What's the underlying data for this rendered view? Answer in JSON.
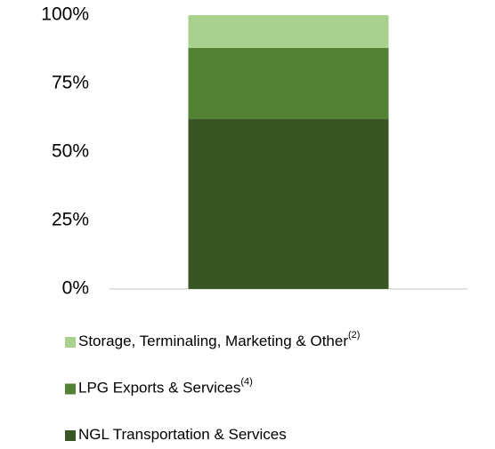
{
  "chart_data": {
    "type": "stacked_bar",
    "categories": [
      null
    ],
    "series": [
      {
        "name": "NGL Transportation & Services",
        "color": "#375623",
        "values": [
          62
        ]
      },
      {
        "name": "LPG Exports & Services",
        "note": "(4)",
        "color": "#548235",
        "values": [
          26
        ]
      },
      {
        "name": "Storage, Terminaling, Marketing & Other",
        "note": "(2)",
        "color": "#a9d18e",
        "values": [
          12
        ]
      }
    ],
    "ylim": [
      0,
      100
    ],
    "yticks": [
      {
        "value": 0,
        "label": "0%"
      },
      {
        "value": 25,
        "label": "25%"
      },
      {
        "value": 50,
        "label": "50%"
      },
      {
        "value": 75,
        "label": "75%"
      },
      {
        "value": 100,
        "label": "100%"
      }
    ],
    "grid": false,
    "legend": "bottom"
  }
}
